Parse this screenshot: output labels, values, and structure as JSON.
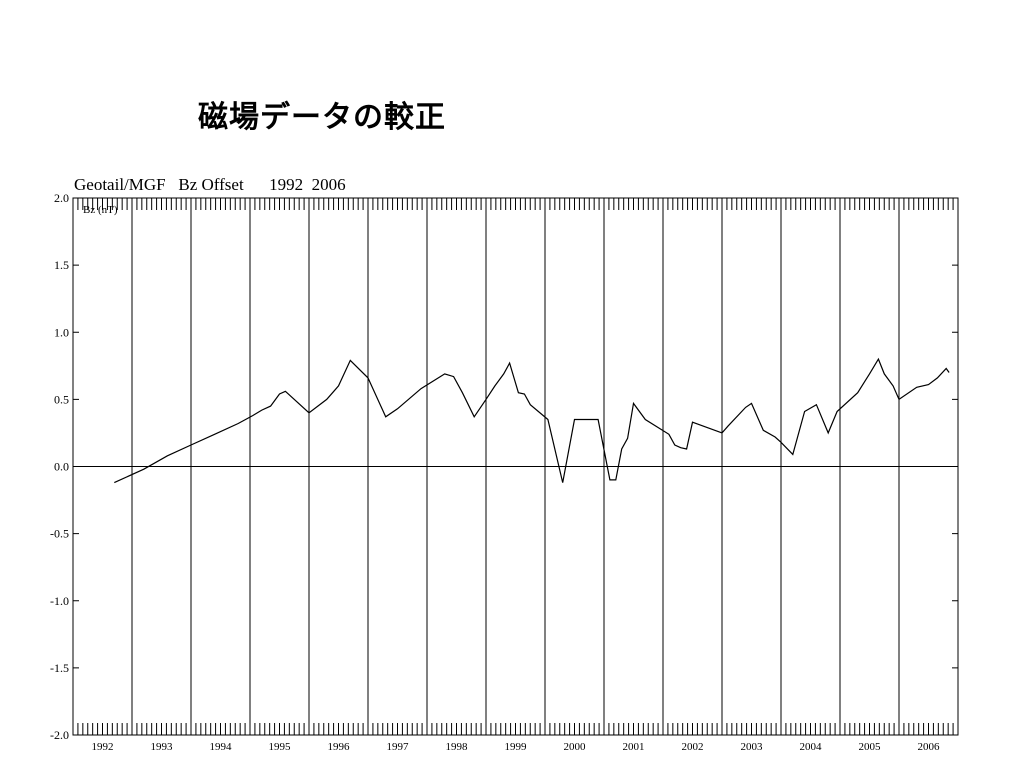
{
  "slide": {
    "title": "磁場データの較正"
  },
  "chart_data": {
    "type": "line",
    "title": "Geotail/MGF   Bz Offset      1992  2006",
    "ylabel": "Bz (nT)",
    "ylim": [
      -2.0,
      2.0
    ],
    "xlim": [
      1992.0,
      2007.0
    ],
    "yticks": [
      "2.0",
      "1.5",
      "1.0",
      "0.5",
      "0.0",
      "-0.5",
      "-1.0",
      "-1.5",
      "-2.0"
    ],
    "ytick_values": [
      2.0,
      1.5,
      1.0,
      0.5,
      0.0,
      -0.5,
      -1.0,
      -1.5,
      -2.0
    ],
    "year_labels": [
      "1992",
      "1993",
      "1994",
      "1995",
      "1996",
      "1997",
      "1998",
      "1999",
      "2000",
      "2001",
      "2002",
      "2003",
      "2004",
      "2005",
      "2006"
    ],
    "grid": "vertical lines at year boundaries",
    "zero_line": true,
    "series": [
      {
        "x": [
          1992.7,
          1993.2,
          1993.6,
          1994.0,
          1994.4,
          1994.8,
          1995.05,
          1995.2,
          1995.35,
          1995.5,
          1995.6,
          1996.0,
          1996.3,
          1996.4,
          1996.5,
          1996.7,
          1997.0,
          1997.3,
          1997.5,
          1997.9,
          1998.3,
          1998.45,
          1998.6,
          1998.8,
          1999.0,
          1999.15,
          1999.3,
          1999.4,
          1999.55,
          1999.65,
          1999.75,
          2000.05,
          2000.3,
          2000.5,
          2000.9,
          2001.1,
          2001.2,
          2001.3,
          2001.4,
          2001.5,
          2001.7,
          2002.1,
          2002.2,
          2002.3,
          2002.4,
          2002.5,
          2003.0,
          2003.1,
          2003.4,
          2003.5,
          2003.7,
          2003.9,
          2004.0,
          2004.2,
          2004.4,
          2004.6,
          2004.8,
          2004.95,
          2005.3,
          2005.5,
          2005.65,
          2005.75,
          2005.9,
          2006.0,
          2006.3,
          2006.5,
          2006.65,
          2006.8,
          2006.85
        ],
        "y": [
          -0.12,
          -0.02,
          0.08,
          0.16,
          0.24,
          0.32,
          0.38,
          0.42,
          0.45,
          0.54,
          0.56,
          0.4,
          0.5,
          0.55,
          0.6,
          0.79,
          0.66,
          0.37,
          0.43,
          0.58,
          0.69,
          0.67,
          0.55,
          0.37,
          0.5,
          0.6,
          0.69,
          0.77,
          0.55,
          0.54,
          0.46,
          0.35,
          -0.12,
          0.35,
          0.35,
          -0.1,
          -0.1,
          0.13,
          0.21,
          0.47,
          0.35,
          0.24,
          0.16,
          0.14,
          0.13,
          0.33,
          0.25,
          0.3,
          0.44,
          0.47,
          0.27,
          0.22,
          0.18,
          0.09,
          0.41,
          0.46,
          0.25,
          0.41,
          0.55,
          0.69,
          0.8,
          0.69,
          0.6,
          0.5,
          0.59,
          0.61,
          0.66,
          0.73,
          0.7
        ]
      }
    ]
  }
}
